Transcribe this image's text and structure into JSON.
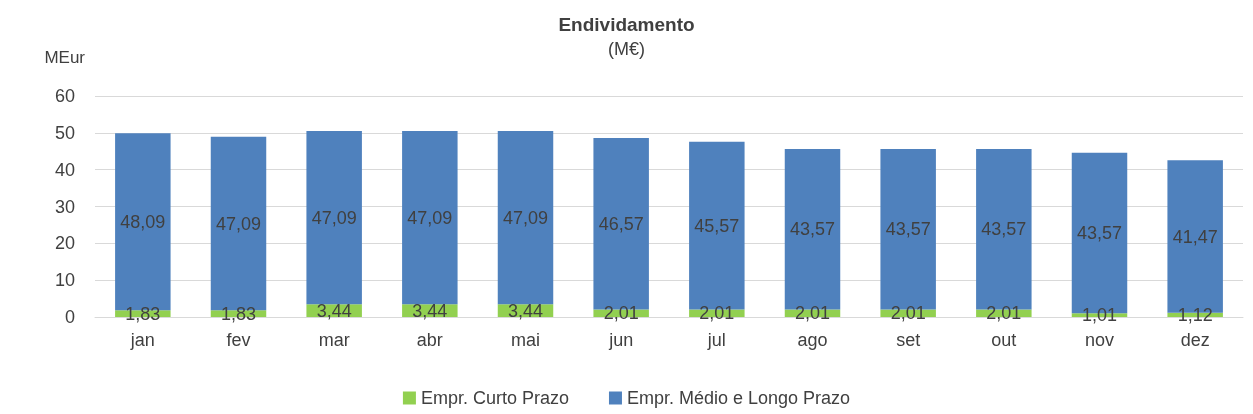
{
  "chart_data": {
    "type": "bar",
    "title": "Endividamento",
    "subtitle": "(M€)",
    "ylabel": "MEur",
    "categories": [
      "jan",
      "fev",
      "mar",
      "abr",
      "mai",
      "jun",
      "jul",
      "ago",
      "set",
      "out",
      "nov",
      "dez"
    ],
    "stacked": true,
    "series": [
      {
        "name": "Empr. Curto Prazo",
        "color": "#92d050",
        "values": [
          1.83,
          1.83,
          3.44,
          3.44,
          3.44,
          2.01,
          2.01,
          2.01,
          2.01,
          2.01,
          1.01,
          1.12
        ],
        "value_labels": [
          "1,83",
          "1,83",
          "3,44",
          "3,44",
          "3,44",
          "2,01",
          "2,01",
          "2,01",
          "2,01",
          "2,01",
          "1,01",
          "1,12"
        ]
      },
      {
        "name": "Empr. Médio e Longo Prazo",
        "color": "#4f81bd",
        "values": [
          48.09,
          47.09,
          47.09,
          47.09,
          47.09,
          46.57,
          45.57,
          43.57,
          43.57,
          43.57,
          43.57,
          41.47
        ],
        "value_labels": [
          "48,09",
          "47,09",
          "47,09",
          "47,09",
          "47,09",
          "46,57",
          "45,57",
          "43,57",
          "43,57",
          "43,57",
          "43,57",
          "41,47"
        ]
      }
    ],
    "ylim": [
      0,
      60
    ],
    "yticks": [
      0,
      10,
      20,
      30,
      40,
      50,
      60
    ],
    "grid": "y",
    "legend": "bottom"
  }
}
